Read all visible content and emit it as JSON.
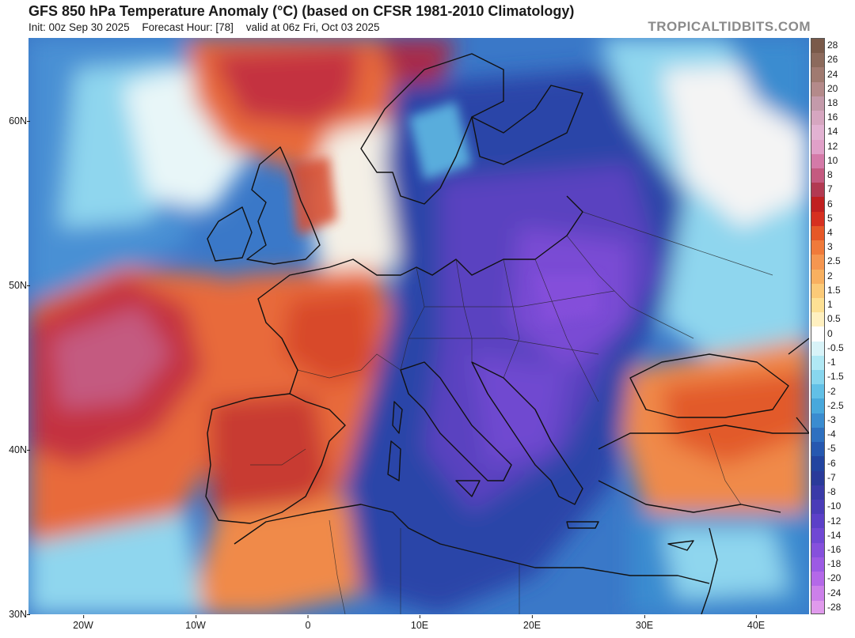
{
  "header": {
    "title": "GFS 850 hPa Temperature Anomaly (°C) (based on CFSR 1981-2010 Climatology)",
    "init": "Init: 00z Sep 30 2025",
    "forecast_hour": "Forecast Hour: [78]",
    "valid": "valid at 06z Fri, Oct 03 2025",
    "brand": "TROPICALTIDBITS.COM"
  },
  "axes": {
    "lat_labels": [
      "60N",
      "50N",
      "40N",
      "30N"
    ],
    "lon_labels": [
      "20W",
      "10W",
      "0",
      "10E",
      "20E",
      "30E",
      "40E"
    ]
  },
  "colorbar": {
    "labels": [
      "28",
      "26",
      "24",
      "20",
      "18",
      "16",
      "14",
      "12",
      "10",
      "8",
      "7",
      "6",
      "5",
      "4",
      "3",
      "2.5",
      "2",
      "1.5",
      "1",
      "0.5",
      "0",
      "-0.5",
      "-1",
      "-1.5",
      "-2",
      "-2.5",
      "-3",
      "-4",
      "-5",
      "-6",
      "-7",
      "-8",
      "-10",
      "-12",
      "-14",
      "-16",
      "-18",
      "-20",
      "-24",
      "-28"
    ],
    "colors": [
      "#7a5a4a",
      "#8c6a5c",
      "#a07a70",
      "#b48a8a",
      "#c49aaa",
      "#d6a6c0",
      "#e2b2d2",
      "#e0a0c8",
      "#d47aa8",
      "#c45a80",
      "#b23a52",
      "#c02020",
      "#d63020",
      "#e65828",
      "#f07a3a",
      "#f59650",
      "#f8b060",
      "#fbca78",
      "#fde094",
      "#fff0c0",
      "#ffffff",
      "#d8f3f8",
      "#b0e8f4",
      "#88d6ee",
      "#62c0e6",
      "#48a8dc",
      "#3a8cd0",
      "#2e70c0",
      "#2658b0",
      "#2244a0",
      "#2a3a9a",
      "#3a3aa8",
      "#4a3cb8",
      "#5c40c8",
      "#7048d4",
      "#8650dc",
      "#9c5ae4",
      "#b468e8",
      "#cc80ea",
      "#e09aec"
    ]
  },
  "colors": {
    "ocean_base": "#3a6fc4",
    "warm_strong": "#c43040",
    "warm": "#e86a3a",
    "warm_light": "#f8b060",
    "neutral": "#f6f6f0",
    "cool_light": "#8fd6ee",
    "cool": "#3a8cd0",
    "cold": "#2a44a8",
    "very_cold": "#6a48d0"
  }
}
